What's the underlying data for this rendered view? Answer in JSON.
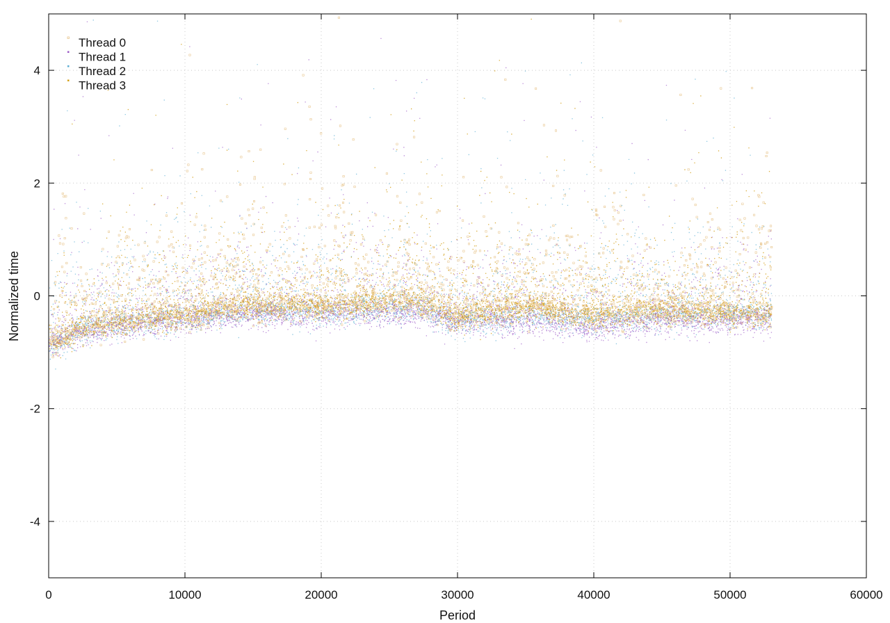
{
  "chart_data": {
    "type": "scatter",
    "xlabel": "Period",
    "ylabel": "Normalized time",
    "xlim": [
      0,
      60000
    ],
    "ylim": [
      -5,
      5
    ],
    "xticks": [
      0,
      10000,
      20000,
      30000,
      40000,
      50000,
      60000
    ],
    "yticks": [
      -4,
      -2,
      0,
      2,
      4
    ],
    "grid": true,
    "legend_position": "top-left",
    "x_extent": [
      0,
      53000
    ],
    "series": [
      {
        "name": "Thread 0",
        "color": "#e0b36a",
        "marker": "small open square",
        "trend": [
          [
            0,
            -0.85
          ],
          [
            2000,
            -0.6
          ],
          [
            5000,
            -0.45
          ],
          [
            10000,
            -0.35
          ],
          [
            14000,
            -0.2
          ],
          [
            20000,
            -0.2
          ],
          [
            27000,
            -0.1
          ],
          [
            30000,
            -0.35
          ],
          [
            35000,
            -0.15
          ],
          [
            40000,
            -0.35
          ],
          [
            45000,
            -0.25
          ],
          [
            50000,
            -0.3
          ],
          [
            53000,
            -0.3
          ]
        ],
        "upper_outliers_typical": [
          0.4,
          1.6
        ]
      },
      {
        "name": "Thread 1",
        "color": "#9b59c6",
        "marker": "dot",
        "trend": [
          [
            0,
            -0.9
          ],
          [
            2000,
            -0.7
          ],
          [
            5000,
            -0.55
          ],
          [
            10000,
            -0.45
          ],
          [
            15000,
            -0.35
          ],
          [
            20000,
            -0.35
          ],
          [
            27000,
            -0.3
          ],
          [
            30000,
            -0.45
          ],
          [
            35000,
            -0.45
          ],
          [
            40000,
            -0.6
          ],
          [
            45000,
            -0.45
          ],
          [
            50000,
            -0.45
          ],
          [
            53000,
            -0.45
          ]
        ],
        "upper_outliers_typical": [
          0.2,
          1.0
        ]
      },
      {
        "name": "Thread 2",
        "color": "#5aaed3",
        "marker": "dot",
        "trend": [
          [
            0,
            -0.95
          ],
          [
            2000,
            -0.65
          ],
          [
            5000,
            -0.5
          ],
          [
            10000,
            -0.4
          ],
          [
            15000,
            -0.3
          ],
          [
            20000,
            -0.3
          ],
          [
            27000,
            -0.25
          ],
          [
            30000,
            -0.5
          ],
          [
            35000,
            -0.35
          ],
          [
            40000,
            -0.45
          ],
          [
            45000,
            -0.35
          ],
          [
            50000,
            -0.35
          ],
          [
            53000,
            -0.35
          ]
        ],
        "upper_outliers_typical": [
          0.3,
          1.4
        ]
      },
      {
        "name": "Thread 3",
        "color": "#d4a017",
        "marker": "dot",
        "trend": [
          [
            0,
            -0.9
          ],
          [
            2000,
            -0.6
          ],
          [
            5000,
            -0.45
          ],
          [
            10000,
            -0.35
          ],
          [
            14000,
            -0.15
          ],
          [
            20000,
            -0.2
          ],
          [
            27000,
            -0.05
          ],
          [
            30000,
            -0.4
          ],
          [
            35000,
            -0.2
          ],
          [
            40000,
            -0.35
          ],
          [
            45000,
            -0.25
          ],
          [
            50000,
            -0.3
          ],
          [
            53000,
            -0.3
          ]
        ],
        "upper_outliers_typical": [
          0.3,
          1.3
        ]
      }
    ]
  }
}
